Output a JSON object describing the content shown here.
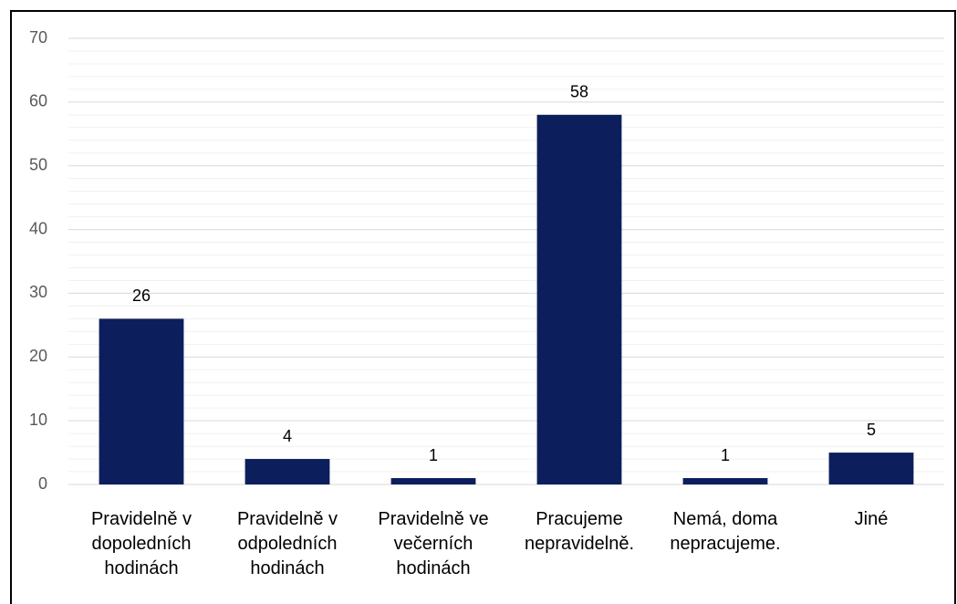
{
  "chart_data": {
    "type": "bar",
    "categories": [
      "Pravidelně v dopoledních hodinách",
      "Pravidelně v odpoledních hodinách",
      "Pravidelně ve večerních hodinách",
      "Pracujeme nepravidelně.",
      "Nemá, doma nepracujeme.",
      "Jiné"
    ],
    "values": [
      26,
      4,
      1,
      58,
      1,
      5
    ],
    "color": "#0c1f5c",
    "ylim": [
      0,
      70
    ],
    "yticks": [
      0,
      10,
      20,
      30,
      40,
      50,
      60,
      70
    ],
    "grid": true,
    "minor_grid": true,
    "data_labels": true
  }
}
